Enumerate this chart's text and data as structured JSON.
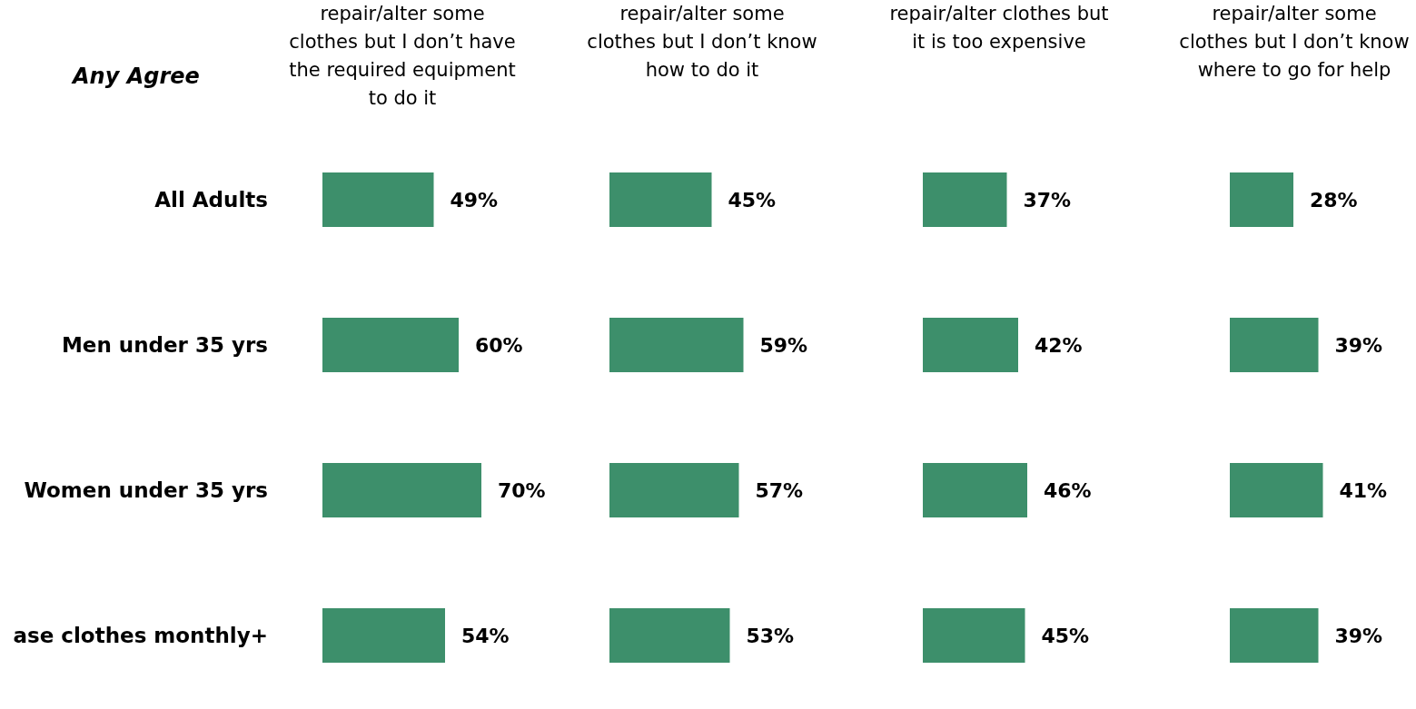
{
  "chart_data": [
    {
      "type": "bar",
      "orientation": "horizontal",
      "title": "repair/alter some clothes but I don’t have the required equipment to do it",
      "categories": [
        "All Adults",
        "Men under 35 yrs",
        "Women under 35 yrs",
        "ase clothes monthly+"
      ],
      "values": [
        49,
        60,
        70,
        54
      ],
      "value_labels": [
        "49%",
        "60%",
        "70%",
        "54%"
      ],
      "color": "#3d8f6b",
      "tick_labels": "y",
      "annotations": [
        "Any Agree"
      ]
    },
    {
      "type": "bar",
      "orientation": "horizontal",
      "title": "repair/alter some clothes but I don’t know how to do it",
      "categories": [
        null,
        null,
        null,
        null
      ],
      "values": [
        45,
        59,
        57,
        53
      ],
      "value_labels": [
        "45%",
        "59%",
        "57%",
        "53%"
      ],
      "color": "#3d8f6b",
      "tick_labels": false
    },
    {
      "type": "bar",
      "orientation": "horizontal",
      "title": "repair/alter clothes but it is too expensive",
      "categories": [
        null,
        null,
        null,
        null
      ],
      "values": [
        37,
        42,
        46,
        45
      ],
      "value_labels": [
        "37%",
        "42%",
        "46%",
        "45%"
      ],
      "color": "#3d8f6b",
      "tick_labels": false
    },
    {
      "type": "bar",
      "orientation": "horizontal",
      "title": "repair/alter some clothes but I don’t know where to go for help",
      "categories": [
        null,
        null,
        null,
        null
      ],
      "values": [
        28,
        39,
        41,
        39
      ],
      "value_labels": [
        "28%",
        "39%",
        "41%",
        "39%"
      ],
      "color": "#3d8f6b",
      "tick_labels": false
    }
  ]
}
